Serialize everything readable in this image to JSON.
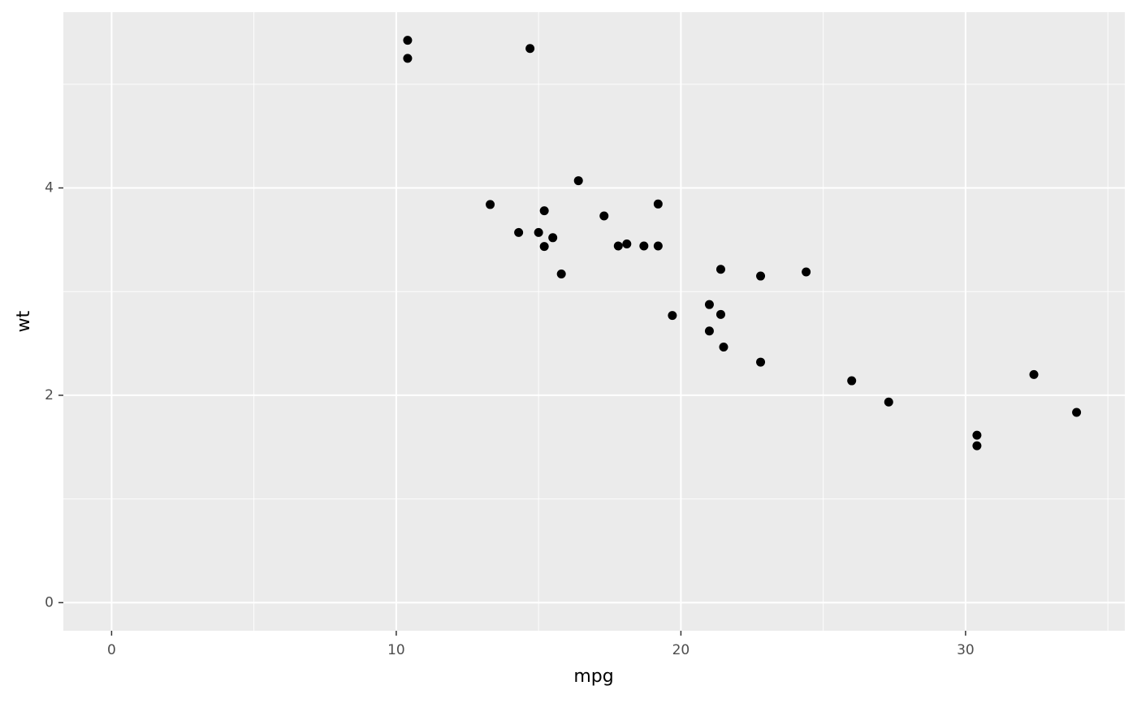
{
  "chart_data": {
    "type": "scatter",
    "x_label": "mpg",
    "y_label": "wt",
    "x": [
      21.0,
      21.0,
      22.8,
      21.4,
      18.7,
      18.1,
      14.3,
      24.4,
      22.8,
      19.2,
      17.8,
      16.4,
      17.3,
      15.2,
      10.4,
      10.4,
      14.7,
      32.4,
      30.4,
      33.9,
      21.5,
      15.5,
      15.2,
      13.3,
      19.2,
      27.3,
      26.0,
      30.4,
      15.8,
      19.7,
      15.0,
      21.4
    ],
    "values": [
      2.62,
      2.875,
      2.32,
      3.215,
      3.44,
      3.46,
      3.57,
      3.19,
      3.15,
      3.44,
      3.44,
      4.07,
      3.73,
      3.78,
      5.25,
      5.424,
      5.345,
      2.2,
      1.615,
      1.835,
      2.465,
      3.52,
      3.435,
      3.84,
      3.845,
      1.935,
      2.14,
      1.513,
      3.17,
      2.77,
      3.57,
      2.78
    ],
    "color": "#000000",
    "xlim": [
      -1.695,
      35.595
    ],
    "ylim": [
      -0.2712,
      5.6952
    ],
    "xticks": [
      0,
      10,
      20,
      30
    ],
    "yticks": [
      0,
      2,
      4
    ],
    "xminorticks": [
      5,
      15,
      25,
      35
    ],
    "yminorticks": [
      1,
      3,
      5
    ],
    "grid": true
  }
}
